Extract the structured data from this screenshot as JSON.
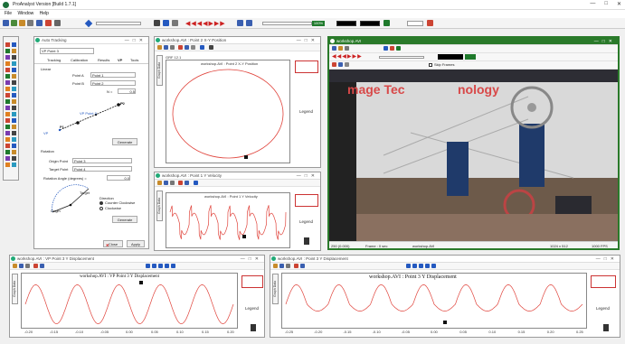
{
  "app": {
    "title": "ProAnalyst Version [Build 1.7.1]"
  },
  "menu": [
    "File",
    "Window",
    "Help"
  ],
  "toolbar": {
    "zoom_readout": "100%"
  },
  "tracking_window": {
    "title": "Auto Tracking",
    "feature_select": "VP Point 3",
    "tabs": [
      "Tracking",
      "Calibration",
      "Results",
      "VP",
      "Tools"
    ],
    "linear_label": "Linear",
    "point_a_label": "Point A",
    "point_b_label": "Point B",
    "point_a_value": "Point 1",
    "point_b_value": "Point 2",
    "n_label": "N =",
    "n_value": "0.5",
    "vp_diag_label": "VP Point 3",
    "p1": "P1",
    "p2": "P2",
    "vp_label": "VP",
    "generate_label": "Generate",
    "rotation_label": "Rotation",
    "origin_label": "Origin Point",
    "target_label": "Target Point",
    "origin_value": "Point 3",
    "target_value": "Point 4",
    "angle_label": "Rotation Angle (degrees) =",
    "angle_value": "0.0",
    "direction_label": "Direction",
    "cc_label": "Counter Clockwise",
    "cw_label": "Clockwise",
    "origin_diag": "Origin",
    "target_diag": "Target",
    "close_label": "Close",
    "apply_label": "Apply"
  },
  "xy_window": {
    "title": "workshop.AVI : Point 2 X-Y Position",
    "plot_title": "workshop.AVI : Point 2 X-Y Position",
    "legend": "Legend",
    "corner": "GRF 12.1",
    "chart_data": {
      "type": "scatter",
      "shape": "ellipse",
      "cx": 0,
      "cy": 0,
      "rx": 1,
      "ry": 1
    }
  },
  "vel_window": {
    "title": "workshop.AVI : Point 1 Y Velocity",
    "plot_title": "workshop.AVI : Point 1 Y Velocity",
    "legend": "Legend"
  },
  "video_window": {
    "title": "workshop.AVI",
    "banner": "mage Tec",
    "banner2": "nology",
    "frame": "Frame : 0 sec",
    "file": "workshop.AVI",
    "fps": "1000 FPS",
    "scale": "250 (0.000)",
    "resolution": "1024 x 512",
    "skip": "Skip Frames"
  },
  "bottom_left": {
    "title": "workshop.AVI : VP Point 3 Y Displacement",
    "plot_title": "workshop.AVI : VP Point 3 Y Displacement",
    "legend": "Legend",
    "x_ticks": [
      "-0.20",
      "-0.15",
      "-0.10",
      "-0.05",
      "0.00",
      "0.05",
      "0.10",
      "0.15",
      "0.20"
    ]
  },
  "bottom_right": {
    "title": "workshop.AVI : Point 3 Y Displacement",
    "plot_title": "workshop.AVI : Point 3 Y Displacement",
    "legend": "Legend",
    "x_ticks": [
      "-0.25",
      "-0.20",
      "-0.15",
      "-0.10",
      "-0.05",
      "0.00",
      "0.05",
      "0.10",
      "0.15",
      "0.20",
      "0.25"
    ]
  },
  "side_tab": {
    "label": "Graph Data"
  },
  "colors": {
    "curve": "#e0443c",
    "accent_green": "#2a7a2a"
  }
}
